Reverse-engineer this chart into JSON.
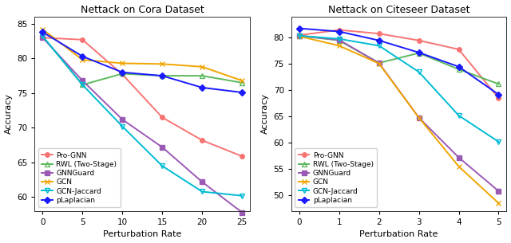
{
  "cora": {
    "title": "Nettack on Cora Dataset",
    "xlabel": "Perturbation Rate",
    "ylabel": "Accuracy",
    "x": [
      0,
      5,
      10,
      15,
      20,
      25
    ],
    "series": {
      "Pro-GNN": {
        "y": [
          83.0,
          82.7,
          77.7,
          71.5,
          68.2,
          65.9
        ],
        "color": "#f87474",
        "marker": "o",
        "linestyle": "-"
      },
      "RWL (Two-Stage)": {
        "y": [
          83.2,
          76.2,
          77.8,
          77.5,
          77.5,
          76.5
        ],
        "color": "#5cb85c",
        "marker": "^",
        "linestyle": "-"
      },
      "GNNGuard": {
        "y": [
          83.0,
          76.8,
          71.2,
          67.2,
          62.2,
          57.8
        ],
        "color": "#9b59b6",
        "marker": "s",
        "linestyle": "-"
      },
      "GCN": {
        "y": [
          84.2,
          79.8,
          79.3,
          79.2,
          78.8,
          76.8
        ],
        "color": "#f0a500",
        "marker": "x",
        "linestyle": "-"
      },
      "GCN-Jaccard": {
        "y": [
          83.2,
          76.2,
          70.2,
          64.5,
          60.8,
          60.2
        ],
        "color": "#00bcd4",
        "marker": "v",
        "linestyle": "-"
      },
      "pLaplacian": {
        "y": [
          83.8,
          80.3,
          78.0,
          77.5,
          75.8,
          75.1
        ],
        "color": "#1a1aff",
        "marker": "D",
        "linestyle": "-"
      }
    },
    "ylim": [
      58,
      86
    ],
    "yticks": [
      60,
      65,
      70,
      75,
      80,
      85
    ]
  },
  "citeseer": {
    "title": "Nettack on Citeseer Dataset",
    "xlabel": "Perturbation Rate",
    "ylabel": "Accuracy",
    "x": [
      0,
      1,
      2,
      3,
      4,
      5
    ],
    "series": {
      "Pro-GNN": {
        "y": [
          80.5,
          81.5,
          80.8,
          79.5,
          77.8,
          68.5
        ],
        "color": "#f87474",
        "marker": "o",
        "linestyle": "-"
      },
      "RWL (Two-Stage)": {
        "y": [
          80.4,
          79.5,
          75.2,
          77.1,
          74.0,
          71.2
        ],
        "color": "#5cb85c",
        "marker": "^",
        "linestyle": "-"
      },
      "GNNGuard": {
        "y": [
          80.4,
          79.6,
          75.2,
          64.8,
          57.2,
          50.8
        ],
        "color": "#9b59b6",
        "marker": "s",
        "linestyle": "-"
      },
      "GCN": {
        "y": [
          80.3,
          78.5,
          75.1,
          64.8,
          55.5,
          48.5
        ],
        "color": "#f0a500",
        "marker": "x",
        "linestyle": "-"
      },
      "GCN-Jaccard": {
        "y": [
          80.4,
          79.8,
          78.5,
          73.5,
          65.2,
          60.2
        ],
        "color": "#00bcd4",
        "marker": "v",
        "linestyle": "-"
      },
      "pLaplacian": {
        "y": [
          81.8,
          81.2,
          79.5,
          77.2,
          74.5,
          69.2
        ],
        "color": "#1a1aff",
        "marker": "D",
        "linestyle": "-"
      }
    },
    "ylim": [
      47,
      84
    ],
    "yticks": [
      50,
      55,
      60,
      65,
      70,
      75,
      80
    ]
  },
  "legend_fontsize": 6.5,
  "title_fontsize": 9,
  "label_fontsize": 8,
  "tick_fontsize": 7.5,
  "linewidth": 1.4,
  "markersize": 4
}
